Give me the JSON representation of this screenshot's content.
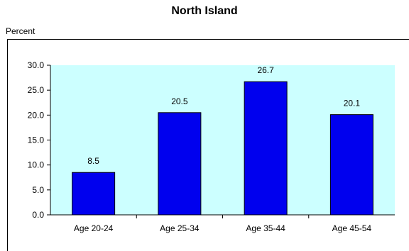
{
  "chart_data": {
    "type": "bar",
    "title": "North Island",
    "ylabel": "Percent",
    "xlabel": "",
    "categories": [
      "Age 20-24",
      "Age 25-34",
      "Age 35-44",
      "Age 45-54"
    ],
    "values": [
      8.5,
      20.5,
      26.7,
      20.1
    ],
    "value_labels": [
      "8.5",
      "20.5",
      "26.7",
      "20.1"
    ],
    "ylim": [
      0,
      30
    ],
    "yticks": [
      "0.0",
      "5.0",
      "10.0",
      "15.0",
      "20.0",
      "25.0",
      "30.0"
    ],
    "grid": false,
    "legend": "none",
    "colors": {
      "bar_fill": "#0000ee",
      "bar_stroke": "#000000",
      "plot_background": "#ccffff",
      "axis": "#000000"
    }
  }
}
